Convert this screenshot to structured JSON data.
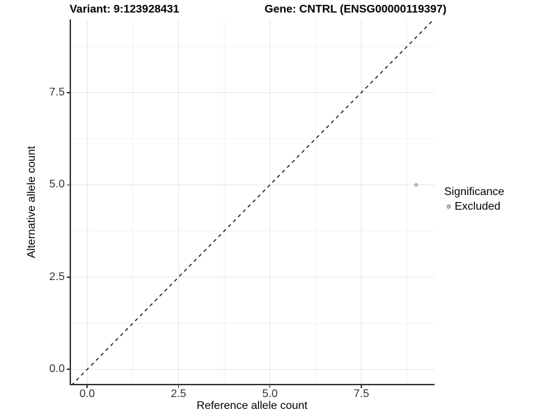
{
  "chart_data": {
    "type": "scatter",
    "title_left": "Variant: 9:123928431",
    "title_right": "Gene: CNTRL (ENSG00000119397)",
    "xlabel": "Reference allele count",
    "ylabel": "Alternative allele count",
    "xlim": [
      -0.48,
      9.5
    ],
    "ylim": [
      -0.43,
      9.48
    ],
    "x_ticks": [
      {
        "value": 0,
        "label": "0.0"
      },
      {
        "value": 2.5,
        "label": "2.5"
      },
      {
        "value": 5,
        "label": "5.0"
      },
      {
        "value": 7.5,
        "label": "7.5"
      }
    ],
    "y_ticks": [
      {
        "value": 0,
        "label": "0.0"
      },
      {
        "value": 2.5,
        "label": "2.5"
      },
      {
        "value": 5,
        "label": "5.0"
      },
      {
        "value": 7.5,
        "label": "7.5"
      }
    ],
    "x_minor_ticks": [
      1.25,
      3.75,
      6.25,
      8.75
    ],
    "y_minor_ticks": [
      1.25,
      3.75,
      6.25,
      8.75
    ],
    "grid": "major+minor",
    "series": [
      {
        "name": "Excluded",
        "color": "#b3b3b3",
        "points": [
          {
            "x": 9,
            "y": 5
          }
        ]
      }
    ],
    "reference_line": {
      "kind": "identity",
      "slope": 1,
      "intercept": 0,
      "style": "dashed",
      "color": "#1a1a1a"
    },
    "legend": {
      "title": "Significance",
      "position": "right",
      "entries": [
        {
          "label": "Excluded",
          "color": "#b3b3b3"
        }
      ]
    },
    "colors": {
      "background": "#ffffff",
      "axis_line": "#333333",
      "tick_label": "#333333",
      "grid_major": "#e5e5e5",
      "grid_minor": "#f2f2f2"
    }
  }
}
